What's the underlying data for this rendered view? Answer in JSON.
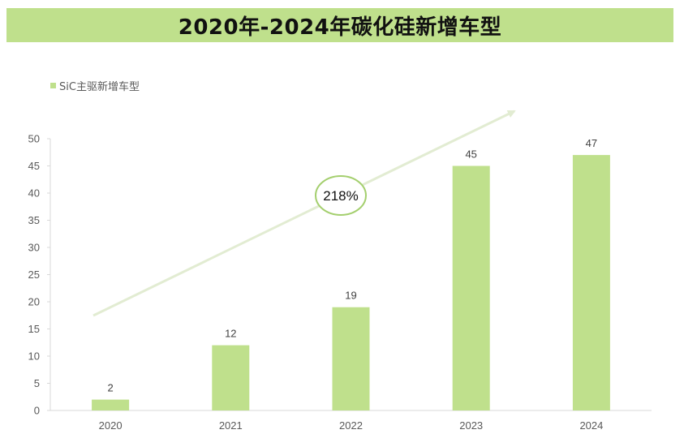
{
  "title": "2020年-2024年碳化硅新增车型",
  "chart_data": {
    "type": "bar",
    "categories": [
      "2020",
      "2021",
      "2022",
      "2023",
      "2024"
    ],
    "series": [
      {
        "name": "SiC主驱新增车型",
        "values": [
          2,
          12,
          19,
          45,
          47
        ]
      }
    ],
    "ylim": [
      0,
      50
    ],
    "yticks": [
      0,
      5,
      10,
      15,
      20,
      25,
      30,
      35,
      40,
      45,
      50
    ],
    "data_labels": true,
    "grid": false,
    "legend_position": "top-left",
    "bar_color": "#bfe08c",
    "annotation": {
      "text": "218%",
      "type": "trend-arrow",
      "arrow_color": "#e2ecd2",
      "ellipse_color": "#a4cf6e"
    }
  }
}
